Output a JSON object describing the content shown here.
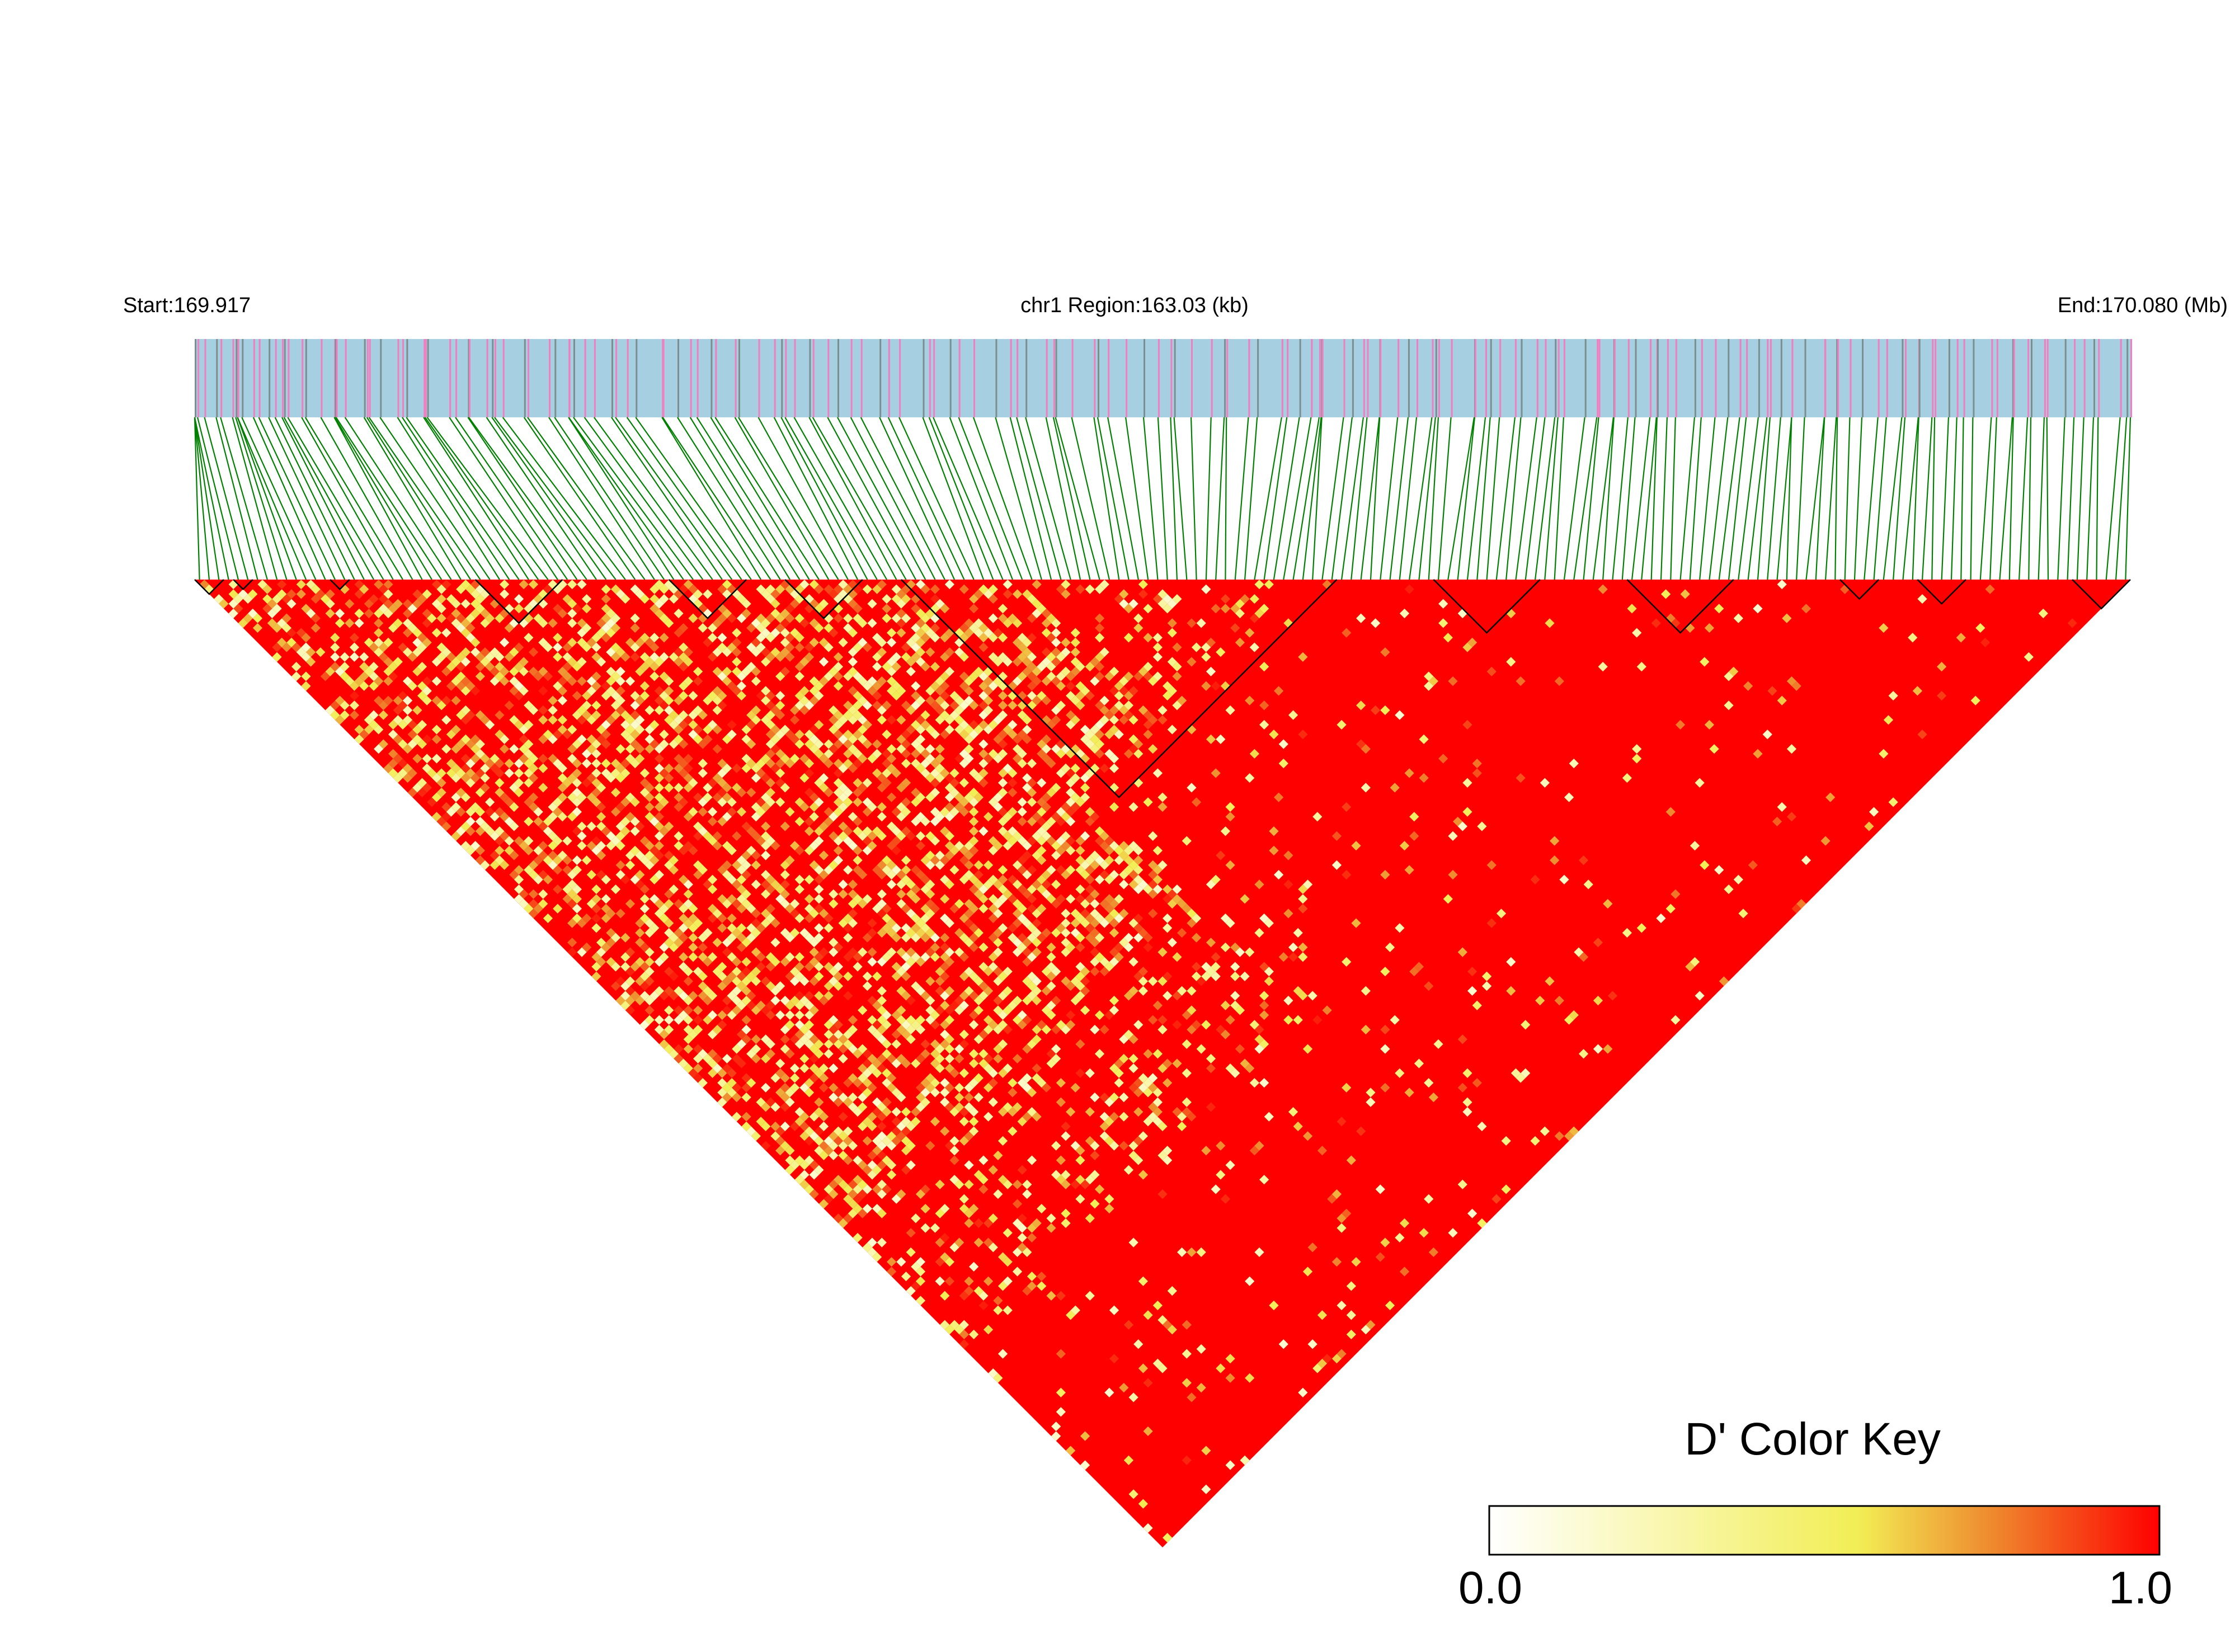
{
  "header": {
    "start_label": "Start:169.917",
    "region_label": "chr1 Region:163.03 (kb)",
    "end_label": "End:170.080 (Mb)"
  },
  "color_key": {
    "title": "D' Color Key",
    "min_label": "0.0",
    "max_label": "1.0",
    "min": 0.0,
    "max": 1.0,
    "colors": [
      "#ffffff",
      "#f2ee55",
      "#ee8a2e",
      "#ff0000"
    ]
  },
  "chart_data": {
    "type": "heatmap",
    "measure": "D'",
    "chromosome": "chr1",
    "region_start_mb": 169.917,
    "region_end_mb": 170.08,
    "region_length_kb": 163.03,
    "snp_count": 200,
    "value_range": [
      0.0,
      1.0
    ],
    "dominant_value": 1.0,
    "snp_track_colors": {
      "background": "#a7cfe2",
      "marker_a": "#ef7fbf",
      "marker_b": "#7b8f8f",
      "connector": "#008000"
    },
    "ld_blocks": [
      {
        "first_snp": 1,
        "last_snp": 3
      },
      {
        "first_snp": 5,
        "last_snp": 6
      },
      {
        "first_snp": 15,
        "last_snp": 16
      },
      {
        "first_snp": 30,
        "last_snp": 38
      },
      {
        "first_snp": 50,
        "last_snp": 57
      },
      {
        "first_snp": 62,
        "last_snp": 69
      },
      {
        "first_snp": 74,
        "last_snp": 118
      },
      {
        "first_snp": 129,
        "last_snp": 139
      },
      {
        "first_snp": 149,
        "last_snp": 159
      },
      {
        "first_snp": 171,
        "last_snp": 174
      },
      {
        "first_snp": 179,
        "last_snp": 183
      },
      {
        "first_snp": 195,
        "last_snp": 200
      }
    ]
  }
}
